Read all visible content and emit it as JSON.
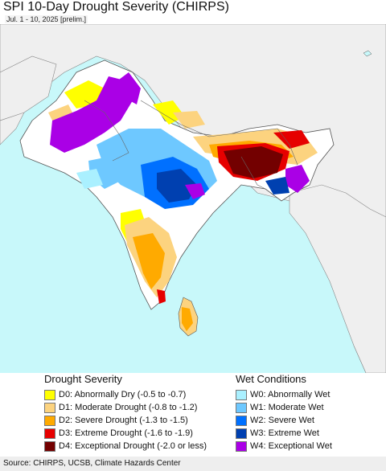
{
  "header": {
    "title": "SPI 10-Day Drought Severity (CHIRPS)",
    "subtitle": "Jul. 1 - 10, 2025 [prelim.]"
  },
  "map": {
    "colors": {
      "ocean": "#c8f8fa",
      "land_outside": "#efefef",
      "land_normal": "#ffffff",
      "D0": "#ffff00",
      "D1": "#fcd37f",
      "D2": "#ffaa00",
      "D3": "#e60000",
      "D4": "#730000",
      "W0": "#aaf0ff",
      "W1": "#6ec8ff",
      "W2": "#0070ff",
      "W3": "#0040b0",
      "W4": "#aa00e6"
    }
  },
  "legend": {
    "drought": {
      "heading": "Drought Severity",
      "items": [
        {
          "label": "D0: Abnormally Dry (-0.5 to -0.7)",
          "color": "#ffff00"
        },
        {
          "label": "D1: Moderate Drought (-0.8 to -1.2)",
          "color": "#fcd37f"
        },
        {
          "label": "D2: Severe Drought (-1.3 to -1.5)",
          "color": "#ffaa00"
        },
        {
          "label": "D3: Extreme Drought (-1.6 to -1.9)",
          "color": "#e60000"
        },
        {
          "label": "D4: Exceptional Drought (-2.0 or less)",
          "color": "#730000"
        }
      ]
    },
    "wet": {
      "heading": "Wet Conditions",
      "items": [
        {
          "label": "W0: Abnormally Wet",
          "color": "#aaf0ff"
        },
        {
          "label": "W1: Moderate Wet",
          "color": "#6ec8ff"
        },
        {
          "label": "W2: Severe Wet",
          "color": "#0070ff"
        },
        {
          "label": "W3: Extreme Wet",
          "color": "#0040b0"
        },
        {
          "label": "W4: Exceptional Wet",
          "color": "#aa00e6"
        }
      ]
    }
  },
  "footer": {
    "source": "Source: CHIRPS, UCSB, Climate Hazards Center"
  }
}
